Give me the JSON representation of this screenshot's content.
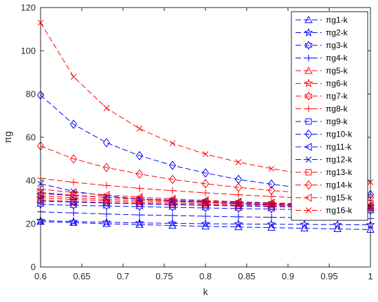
{
  "chart_data": {
    "type": "line",
    "xlabel": "k",
    "ylabel": "πg",
    "xlim": [
      0.6,
      1
    ],
    "ylim": [
      0,
      120
    ],
    "xticks": [
      0.6,
      0.65,
      0.7,
      0.75,
      0.8,
      0.85,
      0.9,
      0.95,
      1
    ],
    "xtick_labels": [
      "0.6",
      "0.65",
      "0.7",
      "0.75",
      "0.8",
      "0.85",
      "0.9",
      "0.95",
      "1"
    ],
    "yticks": [
      0,
      20,
      40,
      60,
      80,
      100,
      120
    ],
    "ytick_labels": [
      "0",
      "20",
      "40",
      "60",
      "80",
      "100",
      "120"
    ],
    "grid": false,
    "legend_position": "top-right",
    "x": [
      0.6,
      0.64,
      0.68,
      0.72,
      0.76,
      0.8,
      0.84,
      0.88,
      0.92,
      0.96,
      1.0
    ],
    "series": [
      {
        "name": "πg1-k",
        "color": "#0000ff",
        "marker": "triangle-up",
        "values": [
          21,
          20.5,
          20,
          19.6,
          19.2,
          18.8,
          18.5,
          18.2,
          17.9,
          17.6,
          17.3
        ]
      },
      {
        "name": "πg2-k",
        "color": "#0000ff",
        "marker": "pentagram",
        "values": [
          21.5,
          21,
          20.7,
          20.4,
          20.2,
          20,
          19.9,
          19.8,
          19.7,
          19.6,
          19.5
        ]
      },
      {
        "name": "πg3-k",
        "color": "#0000ff",
        "marker": "hexagram",
        "values": [
          29,
          28.5,
          28.2,
          27.9,
          27.6,
          27.3,
          27,
          26.8,
          26.5,
          26.3,
          26
        ]
      },
      {
        "name": "πg4-k",
        "color": "#0000ff",
        "marker": "plus",
        "values": [
          25.5,
          25,
          24.5,
          24.1,
          23.8,
          23.5,
          23.2,
          23,
          22.8,
          22.6,
          22.4
        ]
      },
      {
        "name": "πg5-k",
        "color": "#ff0000",
        "marker": "triangle-up",
        "values": [
          31,
          30.3,
          29.8,
          29.4,
          29,
          28.7,
          28.4,
          28.1,
          27.9,
          27.6,
          27.4
        ]
      },
      {
        "name": "πg6-k",
        "color": "#ff0000",
        "marker": "pentagram",
        "values": [
          32,
          31.2,
          30.6,
          30,
          29.6,
          29.2,
          28.9,
          28.6,
          28.3,
          28.1,
          27.9
        ]
      },
      {
        "name": "πg7-k",
        "color": "#ff0000",
        "marker": "hexagram",
        "values": [
          33,
          32,
          31.3,
          30.7,
          30.2,
          29.8,
          29.4,
          29.1,
          28.8,
          28.5,
          28.3
        ]
      },
      {
        "name": "πg8-k",
        "color": "#ff0000",
        "marker": "plus",
        "values": [
          41,
          39.2,
          37.7,
          36.4,
          35.3,
          34.3,
          33.4,
          32.6,
          31.9,
          31.2,
          30.6
        ]
      },
      {
        "name": "πg9-k",
        "color": "#0000ff",
        "marker": "square",
        "values": [
          30.5,
          30,
          29.6,
          29.2,
          28.8,
          28.5,
          28.2,
          27.9,
          27.7,
          27.4,
          27.2
        ]
      },
      {
        "name": "πg10-k",
        "color": "#0000ff",
        "marker": "diamond",
        "values": [
          79.5,
          66,
          57.5,
          51.5,
          47,
          43.5,
          40.5,
          38.3,
          36.4,
          34.8,
          33.5
        ]
      },
      {
        "name": "πg11-k",
        "color": "#0000ff",
        "marker": "triangle-left",
        "values": [
          34,
          33,
          32.2,
          31.5,
          30.9,
          30.4,
          29.9,
          29.5,
          29.1,
          28.8,
          28.5
        ]
      },
      {
        "name": "πg12-k",
        "color": "#0000ff",
        "marker": "cross",
        "values": [
          38.5,
          35,
          32.8,
          31.5,
          30.6,
          29.9,
          29.3,
          28.8,
          28.4,
          28,
          27.7
        ]
      },
      {
        "name": "πg13-k",
        "color": "#ff0000",
        "marker": "square",
        "values": [
          34.5,
          33.2,
          32.2,
          31.3,
          30.6,
          30,
          29.5,
          29,
          28.6,
          28.2,
          27.9
        ]
      },
      {
        "name": "πg14-k",
        "color": "#ff0000",
        "marker": "diamond",
        "values": [
          56,
          50,
          46,
          43,
          40.5,
          38.5,
          36.8,
          35.4,
          34.2,
          33.1,
          32.2
        ]
      },
      {
        "name": "πg15-k",
        "color": "#ff0000",
        "marker": "triangle-left",
        "values": [
          36,
          34.5,
          33.3,
          32.3,
          31.5,
          30.8,
          30.2,
          29.7,
          29.2,
          28.8,
          28.4
        ]
      },
      {
        "name": "πg16-k",
        "color": "#ff0000",
        "marker": "cross",
        "values": [
          113,
          88,
          73.5,
          64,
          57.2,
          52.2,
          48.5,
          45.5,
          43,
          41,
          39.2
        ]
      }
    ]
  }
}
